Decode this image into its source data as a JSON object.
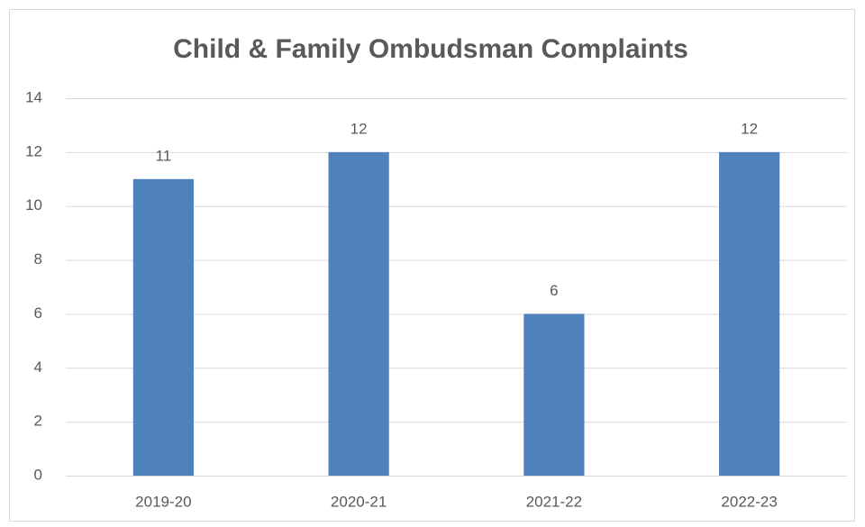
{
  "chart_data": {
    "type": "bar",
    "title": "Child & Family Ombudsman Complaints",
    "categories": [
      "2019-20",
      "2020-21",
      "2021-22",
      "2022-23"
    ],
    "values": [
      11,
      12,
      6,
      12
    ],
    "color": "#4f81bd",
    "ylim": [
      0,
      14
    ],
    "yticks": [
      0,
      2,
      4,
      6,
      8,
      10,
      12,
      14
    ],
    "grid": true
  }
}
